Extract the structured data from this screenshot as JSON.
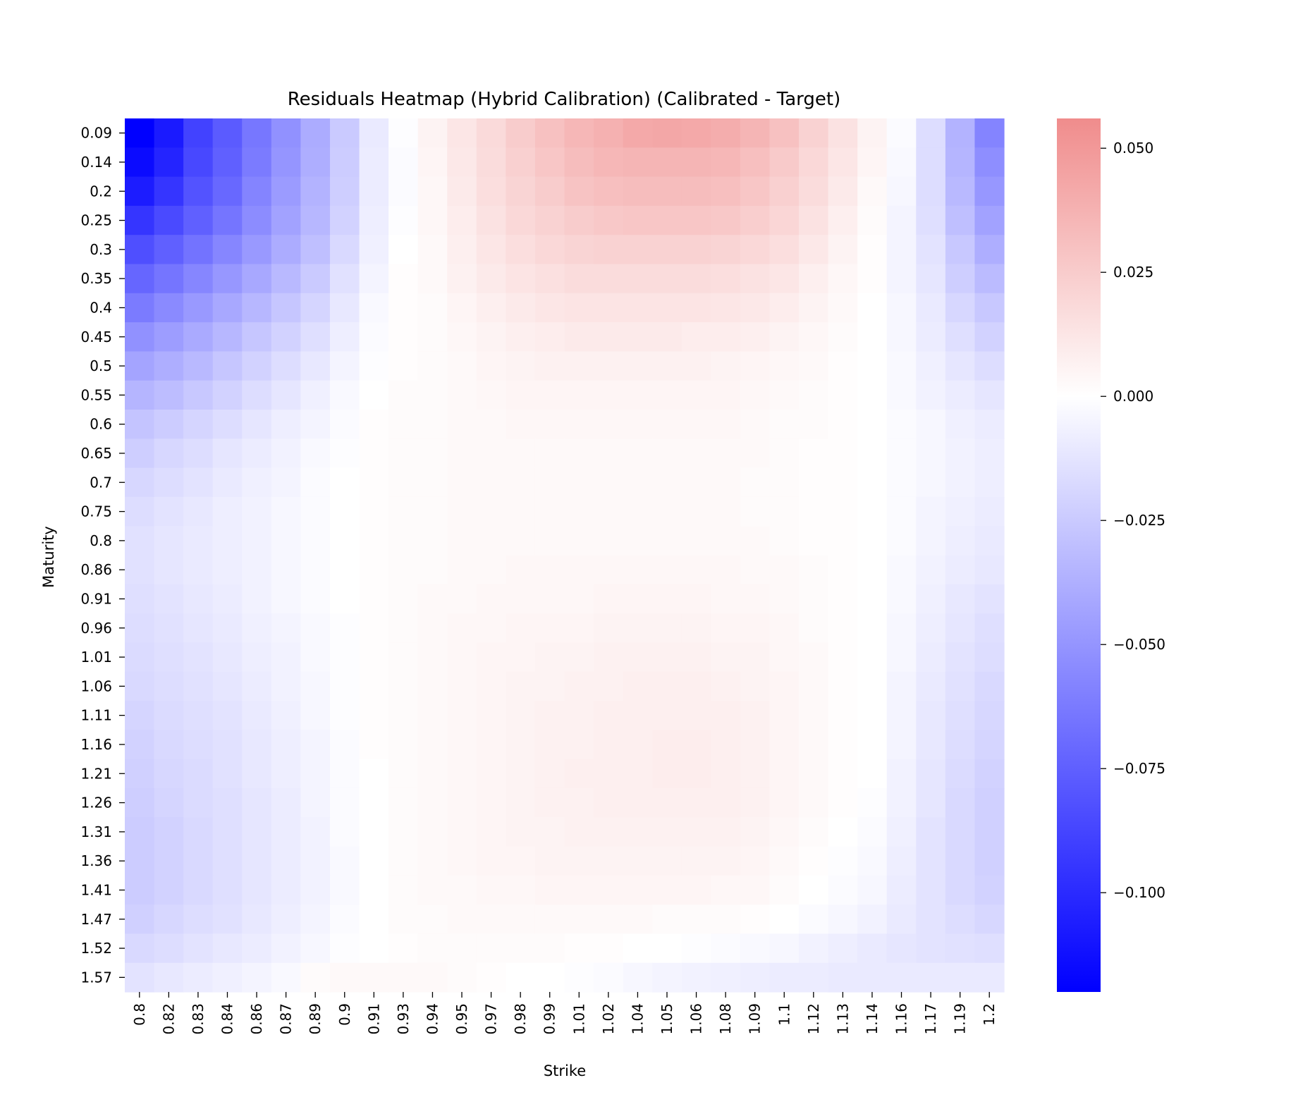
{
  "chart_data": {
    "type": "heatmap",
    "title": "Residuals Heatmap (Hybrid Calibration) (Calibrated - Target)",
    "xlabel": "Strike",
    "ylabel": "Maturity",
    "x": [
      "0.8",
      "0.82",
      "0.83",
      "0.84",
      "0.86",
      "0.87",
      "0.89",
      "0.9",
      "0.91",
      "0.93",
      "0.94",
      "0.95",
      "0.97",
      "0.98",
      "0.99",
      "1.01",
      "1.02",
      "1.04",
      "1.05",
      "1.06",
      "1.08",
      "1.09",
      "1.1",
      "1.12",
      "1.13",
      "1.14",
      "1.16",
      "1.17",
      "1.19",
      "1.2"
    ],
    "y": [
      "0.09",
      "0.14",
      "0.2",
      "0.25",
      "0.3",
      "0.35",
      "0.4",
      "0.45",
      "0.5",
      "0.55",
      "0.6",
      "0.65",
      "0.7",
      "0.75",
      "0.8",
      "0.86",
      "0.91",
      "0.96",
      "1.01",
      "1.06",
      "1.11",
      "1.16",
      "1.21",
      "1.26",
      "1.31",
      "1.36",
      "1.41",
      "1.47",
      "1.52",
      "1.57"
    ],
    "zlim": [
      -0.12,
      0.056
    ],
    "colormap": {
      "low": "#0000ff",
      "mid": "#ffffff",
      "high": "#f08c8c"
    },
    "colorbar": {
      "ticks": [
        0.05,
        0.025,
        0.0,
        -0.025,
        -0.05,
        -0.075,
        -0.1
      ],
      "tick_labels": [
        "0.050",
        "0.025",
        "0.000",
        "−0.025",
        "−0.050",
        "−0.075",
        "−0.100"
      ]
    },
    "values": [
      [
        -0.12,
        -0.108,
        -0.089,
        -0.077,
        -0.064,
        -0.052,
        -0.039,
        -0.025,
        -0.01,
        -0.001,
        0.006,
        0.012,
        0.018,
        0.025,
        0.03,
        0.035,
        0.038,
        0.042,
        0.043,
        0.042,
        0.04,
        0.036,
        0.03,
        0.022,
        0.014,
        0.006,
        -0.002,
        -0.016,
        -0.036,
        -0.058
      ],
      [
        -0.115,
        -0.103,
        -0.086,
        -0.075,
        -0.062,
        -0.05,
        -0.038,
        -0.024,
        -0.009,
        -0.002,
        0.005,
        0.011,
        0.017,
        0.023,
        0.028,
        0.032,
        0.035,
        0.036,
        0.036,
        0.036,
        0.035,
        0.031,
        0.026,
        0.019,
        0.012,
        0.005,
        -0.003,
        -0.016,
        -0.035,
        -0.053
      ],
      [
        -0.107,
        -0.095,
        -0.081,
        -0.071,
        -0.058,
        -0.047,
        -0.036,
        -0.023,
        -0.009,
        -0.002,
        0.004,
        0.01,
        0.016,
        0.021,
        0.025,
        0.029,
        0.031,
        0.032,
        0.032,
        0.032,
        0.031,
        0.028,
        0.023,
        0.017,
        0.01,
        0.003,
        -0.004,
        -0.016,
        -0.033,
        -0.049
      ],
      [
        -0.095,
        -0.085,
        -0.075,
        -0.065,
        -0.054,
        -0.044,
        -0.034,
        -0.021,
        -0.008,
        -0.001,
        0.004,
        0.009,
        0.014,
        0.019,
        0.022,
        0.025,
        0.027,
        0.028,
        0.028,
        0.028,
        0.027,
        0.024,
        0.02,
        0.014,
        0.008,
        0.002,
        -0.005,
        -0.015,
        -0.03,
        -0.044
      ],
      [
        -0.083,
        -0.075,
        -0.066,
        -0.057,
        -0.048,
        -0.039,
        -0.03,
        -0.018,
        -0.007,
        0.0,
        0.003,
        0.008,
        0.012,
        0.016,
        0.019,
        0.021,
        0.022,
        0.022,
        0.022,
        0.022,
        0.021,
        0.019,
        0.016,
        0.011,
        0.006,
        0.001,
        -0.005,
        -0.013,
        -0.026,
        -0.038
      ],
      [
        -0.072,
        -0.065,
        -0.057,
        -0.049,
        -0.041,
        -0.033,
        -0.025,
        -0.014,
        -0.005,
        0.001,
        0.003,
        0.007,
        0.01,
        0.013,
        0.015,
        0.017,
        0.017,
        0.017,
        0.017,
        0.017,
        0.016,
        0.014,
        0.012,
        0.008,
        0.004,
        0.001,
        -0.005,
        -0.012,
        -0.023,
        -0.032
      ],
      [
        -0.062,
        -0.055,
        -0.048,
        -0.041,
        -0.034,
        -0.027,
        -0.02,
        -0.011,
        -0.003,
        0.001,
        0.002,
        0.005,
        0.008,
        0.01,
        0.012,
        0.013,
        0.013,
        0.013,
        0.013,
        0.013,
        0.012,
        0.011,
        0.009,
        0.006,
        0.003,
        0.0,
        -0.004,
        -0.01,
        -0.019,
        -0.026
      ],
      [
        -0.052,
        -0.046,
        -0.04,
        -0.034,
        -0.027,
        -0.021,
        -0.015,
        -0.008,
        -0.002,
        0.001,
        0.002,
        0.004,
        0.006,
        0.008,
        0.009,
        0.01,
        0.01,
        0.01,
        0.01,
        0.009,
        0.009,
        0.008,
        0.006,
        0.004,
        0.002,
        0.0,
        -0.004,
        -0.009,
        -0.015,
        -0.021
      ],
      [
        -0.043,
        -0.038,
        -0.033,
        -0.027,
        -0.021,
        -0.016,
        -0.011,
        -0.005,
        -0.001,
        0.001,
        0.002,
        0.003,
        0.005,
        0.006,
        0.007,
        0.007,
        0.007,
        0.007,
        0.007,
        0.007,
        0.006,
        0.005,
        0.004,
        0.003,
        0.001,
        0.0,
        -0.003,
        -0.007,
        -0.012,
        -0.016
      ],
      [
        -0.035,
        -0.031,
        -0.026,
        -0.021,
        -0.016,
        -0.012,
        -0.007,
        -0.003,
        0.0,
        0.002,
        0.002,
        0.003,
        0.004,
        0.005,
        0.005,
        0.005,
        0.005,
        0.005,
        0.005,
        0.005,
        0.005,
        0.004,
        0.003,
        0.002,
        0.001,
        0.0,
        -0.003,
        -0.006,
        -0.009,
        -0.012
      ],
      [
        -0.028,
        -0.024,
        -0.02,
        -0.016,
        -0.012,
        -0.008,
        -0.005,
        -0.002,
        0.001,
        0.002,
        0.002,
        0.003,
        0.003,
        0.004,
        0.004,
        0.004,
        0.004,
        0.004,
        0.004,
        0.004,
        0.004,
        0.003,
        0.002,
        0.002,
        0.001,
        0.0,
        -0.002,
        -0.004,
        -0.007,
        -0.009
      ],
      [
        -0.023,
        -0.019,
        -0.016,
        -0.012,
        -0.009,
        -0.006,
        -0.003,
        -0.001,
        0.001,
        0.002,
        0.002,
        0.003,
        0.003,
        0.003,
        0.003,
        0.003,
        0.003,
        0.003,
        0.003,
        0.003,
        0.003,
        0.003,
        0.002,
        0.001,
        0.001,
        0.0,
        -0.002,
        -0.004,
        -0.006,
        -0.008
      ],
      [
        -0.019,
        -0.016,
        -0.013,
        -0.01,
        -0.007,
        -0.005,
        -0.002,
        0.0,
        0.001,
        0.002,
        0.002,
        0.003,
        0.003,
        0.003,
        0.003,
        0.003,
        0.003,
        0.003,
        0.003,
        0.003,
        0.003,
        0.002,
        0.002,
        0.001,
        0.001,
        0.0,
        -0.002,
        -0.004,
        -0.006,
        -0.008
      ],
      [
        -0.016,
        -0.013,
        -0.011,
        -0.008,
        -0.006,
        -0.004,
        -0.002,
        0.0,
        0.001,
        0.002,
        0.002,
        0.003,
        0.003,
        0.003,
        0.003,
        0.003,
        0.003,
        0.003,
        0.003,
        0.003,
        0.003,
        0.002,
        0.002,
        0.001,
        0.001,
        0.0,
        -0.002,
        -0.005,
        -0.007,
        -0.009
      ],
      [
        -0.014,
        -0.012,
        -0.01,
        -0.008,
        -0.006,
        -0.004,
        -0.002,
        0.0,
        0.001,
        0.002,
        0.002,
        0.003,
        0.003,
        0.003,
        0.003,
        0.003,
        0.003,
        0.003,
        0.003,
        0.003,
        0.003,
        0.003,
        0.002,
        0.001,
        0.001,
        0.0,
        -0.002,
        -0.005,
        -0.008,
        -0.01
      ],
      [
        -0.014,
        -0.012,
        -0.01,
        -0.008,
        -0.006,
        -0.004,
        -0.002,
        0.0,
        0.001,
        0.002,
        0.002,
        0.003,
        0.003,
        0.004,
        0.004,
        0.004,
        0.004,
        0.004,
        0.004,
        0.004,
        0.004,
        0.003,
        0.003,
        0.002,
        0.001,
        0.0,
        -0.003,
        -0.006,
        -0.009,
        -0.011
      ],
      [
        -0.015,
        -0.013,
        -0.011,
        -0.009,
        -0.006,
        -0.004,
        -0.002,
        0.0,
        0.001,
        0.002,
        0.003,
        0.003,
        0.004,
        0.004,
        0.004,
        0.004,
        0.005,
        0.005,
        0.005,
        0.005,
        0.004,
        0.004,
        0.003,
        0.002,
        0.001,
        0.0,
        -0.003,
        -0.007,
        -0.011,
        -0.013
      ],
      [
        -0.016,
        -0.014,
        -0.012,
        -0.01,
        -0.007,
        -0.005,
        -0.003,
        -0.001,
        0.001,
        0.002,
        0.003,
        0.004,
        0.004,
        0.005,
        0.005,
        0.005,
        0.006,
        0.006,
        0.006,
        0.006,
        0.005,
        0.005,
        0.004,
        0.002,
        0.001,
        0.0,
        -0.004,
        -0.008,
        -0.012,
        -0.015
      ],
      [
        -0.017,
        -0.015,
        -0.013,
        -0.011,
        -0.008,
        -0.006,
        -0.003,
        -0.001,
        0.001,
        0.002,
        0.003,
        0.004,
        0.005,
        0.005,
        0.006,
        0.006,
        0.007,
        0.007,
        0.007,
        0.007,
        0.006,
        0.006,
        0.004,
        0.003,
        0.001,
        0.0,
        -0.004,
        -0.009,
        -0.013,
        -0.016
      ],
      [
        -0.018,
        -0.016,
        -0.014,
        -0.012,
        -0.009,
        -0.006,
        -0.004,
        -0.001,
        0.001,
        0.002,
        0.003,
        0.004,
        0.005,
        0.006,
        0.006,
        0.007,
        0.007,
        0.008,
        0.008,
        0.008,
        0.007,
        0.006,
        0.005,
        0.003,
        0.001,
        0.0,
        -0.005,
        -0.01,
        -0.014,
        -0.018
      ],
      [
        -0.02,
        -0.017,
        -0.015,
        -0.013,
        -0.01,
        -0.007,
        -0.004,
        -0.001,
        0.001,
        0.002,
        0.003,
        0.004,
        0.005,
        0.006,
        0.007,
        0.007,
        0.008,
        0.008,
        0.008,
        0.008,
        0.008,
        0.007,
        0.005,
        0.003,
        0.001,
        0.0,
        -0.005,
        -0.011,
        -0.015,
        -0.019
      ],
      [
        -0.021,
        -0.018,
        -0.016,
        -0.014,
        -0.011,
        -0.008,
        -0.005,
        -0.002,
        0.001,
        0.002,
        0.003,
        0.004,
        0.005,
        0.006,
        0.007,
        0.007,
        0.008,
        0.008,
        0.009,
        0.009,
        0.008,
        0.007,
        0.005,
        0.003,
        0.001,
        0.0,
        -0.005,
        -0.011,
        -0.016,
        -0.02
      ],
      [
        -0.022,
        -0.019,
        -0.017,
        -0.014,
        -0.011,
        -0.008,
        -0.005,
        -0.002,
        0.0,
        0.002,
        0.003,
        0.004,
        0.005,
        0.006,
        0.007,
        0.008,
        0.008,
        0.008,
        0.009,
        0.009,
        0.008,
        0.007,
        0.005,
        0.003,
        0.001,
        0.0,
        -0.006,
        -0.012,
        -0.017,
        -0.021
      ],
      [
        -0.023,
        -0.02,
        -0.017,
        -0.015,
        -0.012,
        -0.009,
        -0.005,
        -0.002,
        0.0,
        0.002,
        0.003,
        0.004,
        0.005,
        0.006,
        0.007,
        0.007,
        0.008,
        0.008,
        0.008,
        0.008,
        0.008,
        0.007,
        0.005,
        0.003,
        0.001,
        -0.001,
        -0.006,
        -0.012,
        -0.018,
        -0.022
      ],
      [
        -0.024,
        -0.021,
        -0.018,
        -0.015,
        -0.012,
        -0.009,
        -0.006,
        -0.002,
        0.0,
        0.002,
        0.003,
        0.004,
        0.005,
        0.006,
        0.006,
        0.007,
        0.007,
        0.007,
        0.007,
        0.007,
        0.007,
        0.006,
        0.004,
        0.002,
        0.0,
        -0.002,
        -0.007,
        -0.013,
        -0.018,
        -0.022
      ],
      [
        -0.024,
        -0.021,
        -0.018,
        -0.015,
        -0.012,
        -0.009,
        -0.006,
        -0.003,
        0.0,
        0.002,
        0.003,
        0.004,
        0.005,
        0.005,
        0.006,
        0.006,
        0.006,
        0.006,
        0.006,
        0.006,
        0.006,
        0.005,
        0.003,
        0.001,
        -0.001,
        -0.003,
        -0.008,
        -0.013,
        -0.018,
        -0.022
      ],
      [
        -0.024,
        -0.021,
        -0.018,
        -0.015,
        -0.012,
        -0.009,
        -0.006,
        -0.003,
        0.0,
        0.002,
        0.003,
        0.003,
        0.004,
        0.004,
        0.005,
        0.005,
        0.005,
        0.005,
        0.005,
        0.005,
        0.004,
        0.004,
        0.002,
        0.0,
        -0.002,
        -0.004,
        -0.009,
        -0.013,
        -0.018,
        -0.021
      ],
      [
        -0.022,
        -0.019,
        -0.016,
        -0.014,
        -0.011,
        -0.008,
        -0.005,
        -0.002,
        0.0,
        0.002,
        0.002,
        0.003,
        0.003,
        0.003,
        0.003,
        0.003,
        0.003,
        0.003,
        0.002,
        0.002,
        0.002,
        0.001,
        0.0,
        -0.002,
        -0.004,
        -0.006,
        -0.01,
        -0.013,
        -0.016,
        -0.019
      ],
      [
        -0.018,
        -0.016,
        -0.013,
        -0.011,
        -0.009,
        -0.006,
        -0.004,
        -0.001,
        0.0,
        0.001,
        0.002,
        0.002,
        0.002,
        0.002,
        0.002,
        0.001,
        0.001,
        0.0,
        0.0,
        -0.001,
        -0.002,
        -0.003,
        -0.004,
        -0.006,
        -0.008,
        -0.01,
        -0.012,
        -0.013,
        -0.014,
        -0.015
      ],
      [
        -0.013,
        -0.011,
        -0.009,
        -0.007,
        -0.005,
        -0.003,
        0.002,
        0.003,
        0.003,
        0.003,
        0.003,
        0.002,
        0.001,
        0.0,
        0.0,
        -0.001,
        -0.002,
        -0.004,
        -0.005,
        -0.006,
        -0.007,
        -0.008,
        -0.009,
        -0.009,
        -0.01,
        -0.01,
        -0.01,
        -0.01,
        -0.01,
        -0.01
      ]
    ]
  }
}
